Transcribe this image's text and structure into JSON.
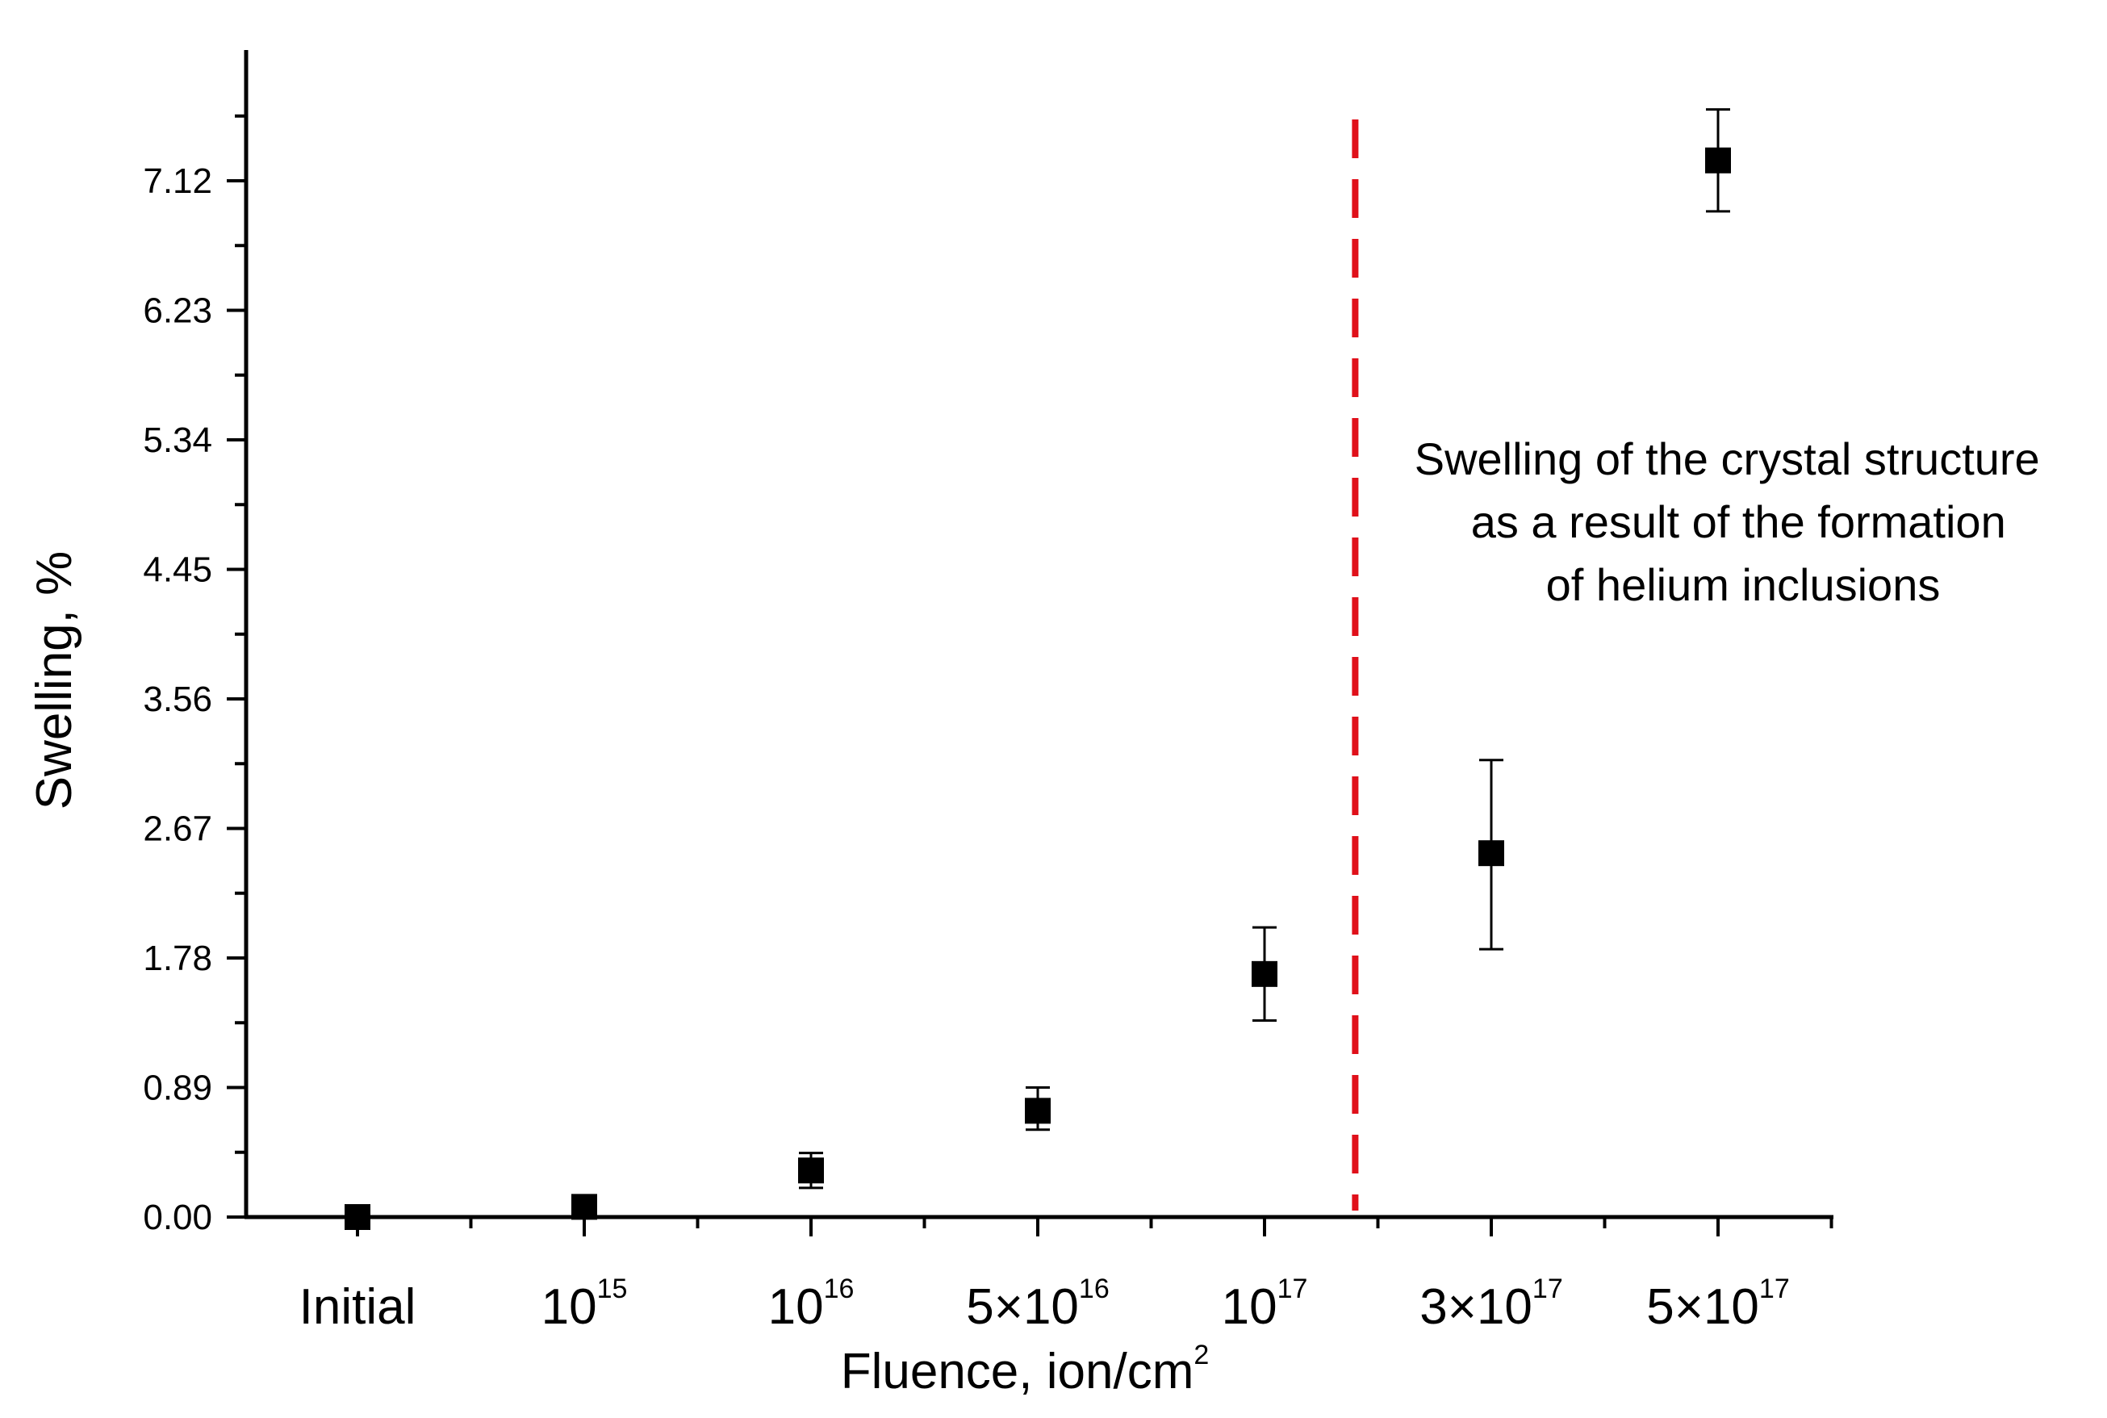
{
  "chart_data": {
    "type": "scatter",
    "title": "",
    "xlabel": "Fluence, ion/cm",
    "xlabel_sup": "2",
    "ylabel": "Swelling, %",
    "ylim": [
      0,
      8.2
    ],
    "yticks": [
      0.0,
      0.89,
      1.78,
      2.67,
      3.56,
      4.45,
      5.34,
      6.23,
      7.12
    ],
    "ytick_labels": [
      "0.00",
      "0.89",
      "1.78",
      "2.67",
      "3.56",
      "4.45",
      "5.34",
      "6.23",
      "7.12"
    ],
    "categories": [
      {
        "base": "Initial",
        "sup": ""
      },
      {
        "base": "10",
        "sup": "15"
      },
      {
        "base": "10",
        "sup": "16"
      },
      {
        "base": "5×10",
        "sup": "16"
      },
      {
        "base": "10",
        "sup": "17"
      },
      {
        "base": "3×10",
        "sup": "17"
      },
      {
        "base": "5×10",
        "sup": "17"
      }
    ],
    "series": [
      {
        "name": "Swelling",
        "marker": "square",
        "color": "#000000",
        "values": [
          0.0,
          0.07,
          0.32,
          0.73,
          1.67,
          2.5,
          7.26
        ],
        "err_low": [
          0.0,
          0.0,
          0.12,
          0.13,
          0.32,
          0.66,
          0.35
        ],
        "err_high": [
          0.0,
          0.0,
          0.12,
          0.16,
          0.32,
          0.64,
          0.35
        ]
      }
    ],
    "divider": {
      "x_between": [
        4,
        5
      ],
      "x_fraction": 0.4,
      "color": "#e0101a",
      "style": "dashed"
    },
    "annotation": {
      "lines": [
        "Swelling of the crystal structure",
        "as a result of the formation",
        "of helium inclusions"
      ]
    }
  }
}
